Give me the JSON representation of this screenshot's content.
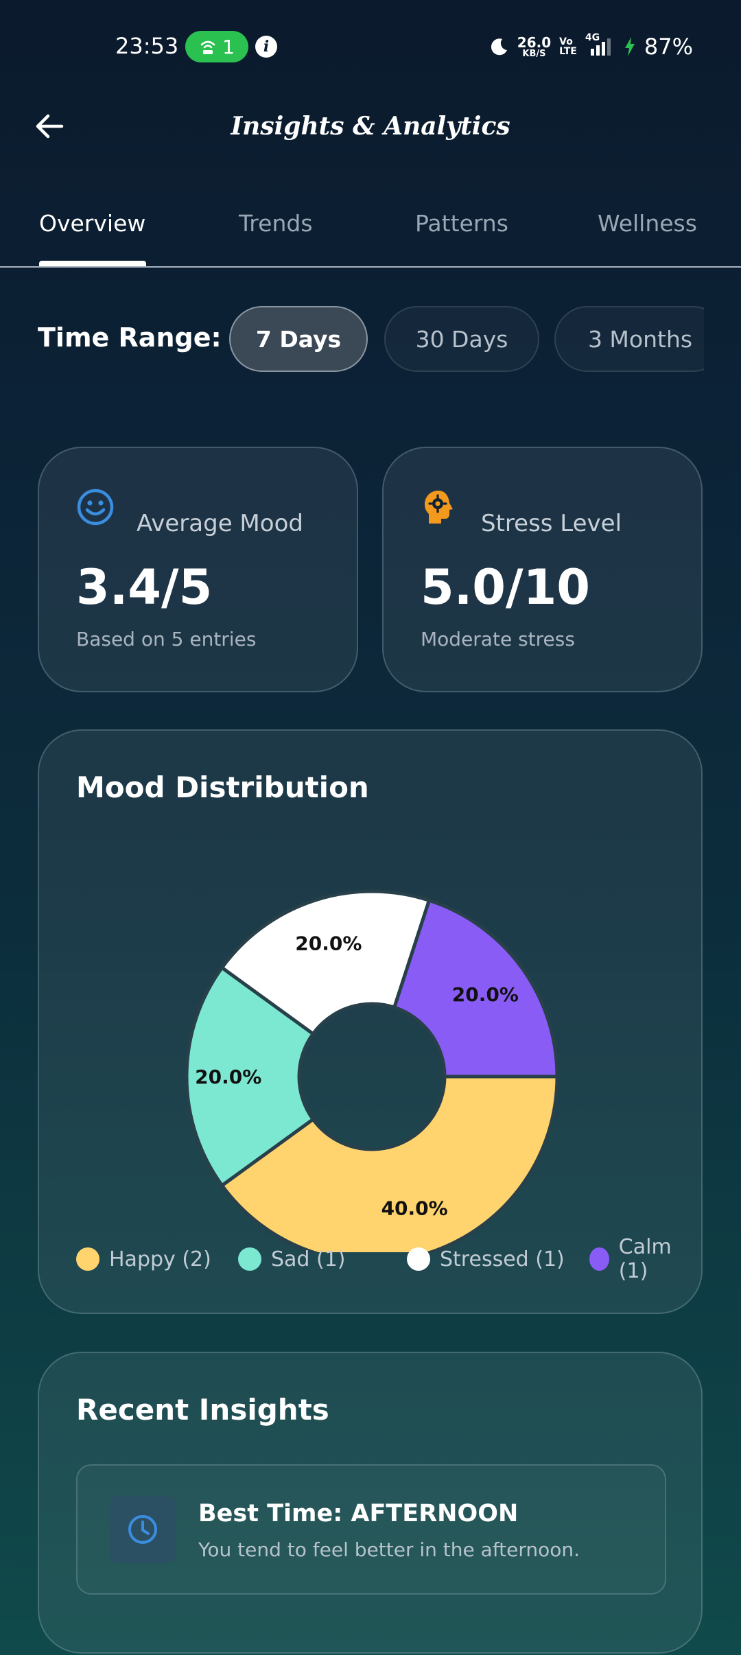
{
  "status_bar": {
    "time": "23:53",
    "hotspot_count": "1",
    "info_icon": "i",
    "net_speed_value": "26.0",
    "net_speed_unit": "KB/S",
    "volte_top": "Vo",
    "volte_bottom": "LTE",
    "network": "4G",
    "battery": "87%",
    "icons": [
      "moon-icon",
      "signal-icon",
      "charging-icon",
      "hotspot-icon"
    ]
  },
  "header": {
    "title": "Insights & Analytics",
    "back_icon": "arrow-left-icon"
  },
  "tabs": [
    {
      "label": "Overview",
      "active": true
    },
    {
      "label": "Trends",
      "active": false
    },
    {
      "label": "Patterns",
      "active": false
    },
    {
      "label": "Wellness",
      "active": false
    }
  ],
  "time_range": {
    "label": "Time Range:",
    "options": [
      {
        "label": "7 Days",
        "selected": true
      },
      {
        "label": "30 Days",
        "selected": false
      },
      {
        "label": "3 Months",
        "selected": false
      }
    ]
  },
  "stats": {
    "average_mood": {
      "title": "Average Mood",
      "value": "3.4/5",
      "subtitle": "Based on 5 entries",
      "icon": "smiley-icon",
      "icon_color": "#3b8de0"
    },
    "stress_level": {
      "title": "Stress Level",
      "value": "5.0/10",
      "subtitle": "Moderate stress",
      "icon": "head-gear-icon",
      "icon_color": "#f2991e"
    }
  },
  "mood_distribution": {
    "title": "Mood Distribution",
    "legend": [
      {
        "label": "Happy (2)",
        "color": "#ffd46e"
      },
      {
        "label": "Sad (1)",
        "color": "#7de8d2"
      },
      {
        "label": "Stressed (1)",
        "color": "#ffffff"
      },
      {
        "label": "Calm (1)",
        "color": "#8a5cf6"
      }
    ]
  },
  "chart_data": {
    "type": "pie",
    "title": "Mood Distribution",
    "categories": [
      "Happy",
      "Sad",
      "Stressed",
      "Calm"
    ],
    "values": [
      2,
      1,
      1,
      1
    ],
    "percent_labels": [
      "40.0%",
      "20.0%",
      "20.0%",
      "20.0%"
    ],
    "colors": [
      "#ffd46e",
      "#7de8d2",
      "#ffffff",
      "#8a5cf6"
    ],
    "donut": true,
    "legend_position": "bottom"
  },
  "recent_insights": {
    "title": "Recent Insights",
    "items": [
      {
        "title": "Best Time: AFTERNOON",
        "text": "You tend to feel better in the afternoon.",
        "icon": "clock-icon"
      }
    ]
  }
}
